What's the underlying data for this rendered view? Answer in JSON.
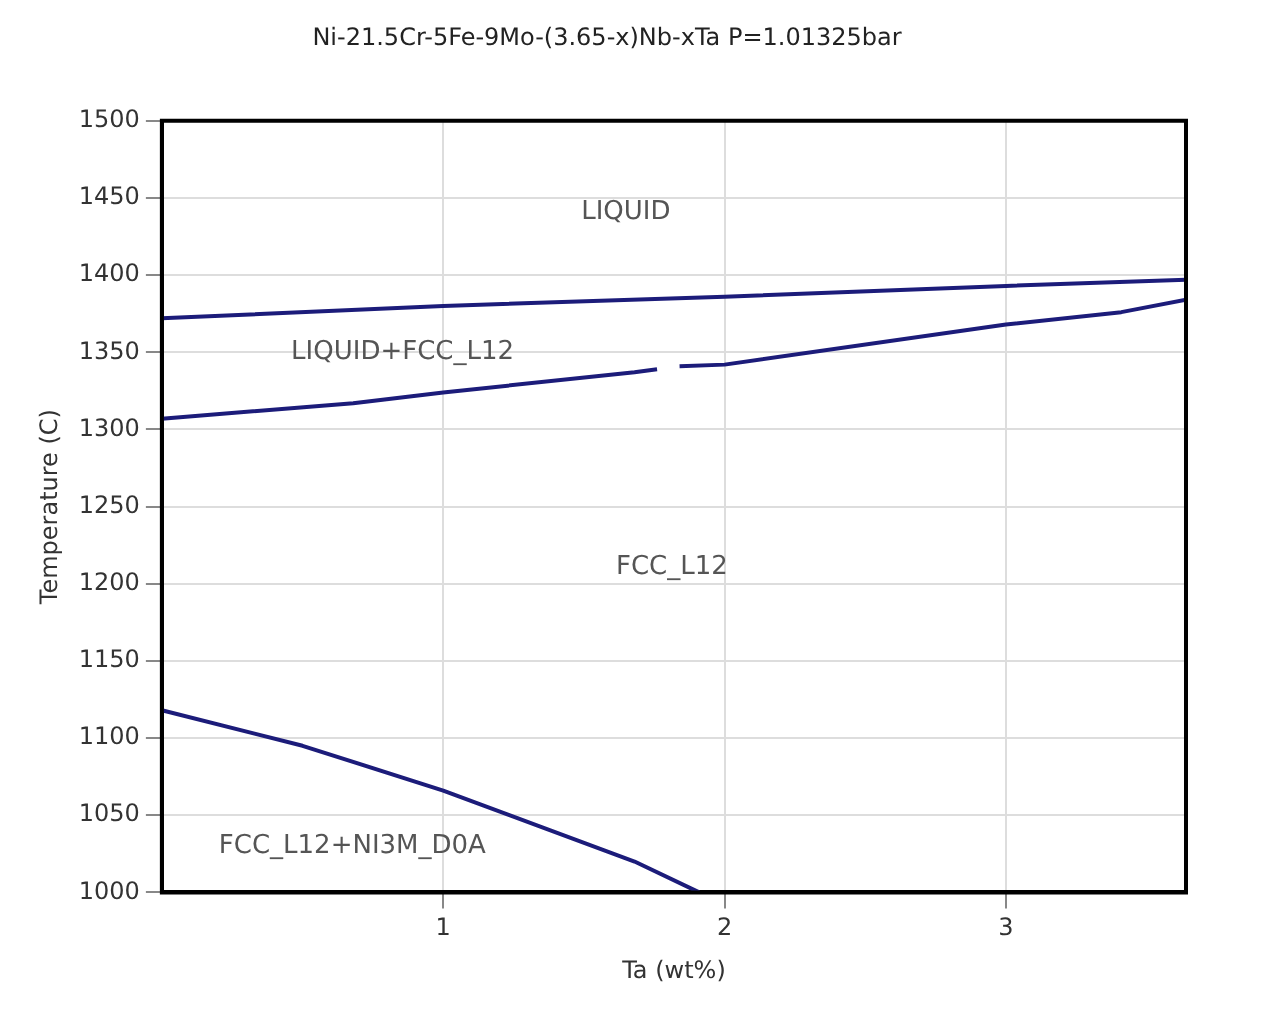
{
  "chart_data": {
    "type": "line",
    "title": "Ni-21.5Cr-5Fe-9Mo-(3.65-x)Nb-xTa P=1.01325bar",
    "xlabel": "Ta (wt%)",
    "ylabel": "Temperature (C)",
    "xlim": [
      0,
      3.64
    ],
    "xticks": [
      1,
      2,
      3
    ],
    "ylim": [
      1000,
      1500
    ],
    "yticks": [
      1000,
      1050,
      1100,
      1150,
      1200,
      1250,
      1300,
      1350,
      1400,
      1450,
      1500
    ],
    "grid": true,
    "legend": false,
    "marker": "none",
    "line_style": "solid",
    "series": [
      {
        "color": "#1c1c7a",
        "x": [
          0,
          1,
          2,
          3,
          3.64
        ],
        "values": [
          1372,
          1380,
          1386,
          1393,
          1397
        ]
      },
      {
        "color": "#1c1c7a",
        "x": [
          0,
          0.68,
          1,
          1.68,
          1.76,
          1.8,
          1.84,
          2,
          3,
          3.41,
          3.64
        ],
        "values": [
          1307,
          1317,
          1324,
          1337,
          1339,
          null,
          1341,
          1342,
          1368,
          1376,
          1384
        ]
      },
      {
        "color": "#1c1c7a",
        "x": [
          0,
          0.5,
          1,
          1.68,
          1.91
        ],
        "values": [
          1118,
          1095,
          1066,
          1020,
          1000
        ]
      }
    ],
    "annotations": [
      "LIQUID",
      "LIQUID+FCC_L12",
      "FCC_L12",
      "FCC_L12+NI3M_D0A"
    ]
  }
}
